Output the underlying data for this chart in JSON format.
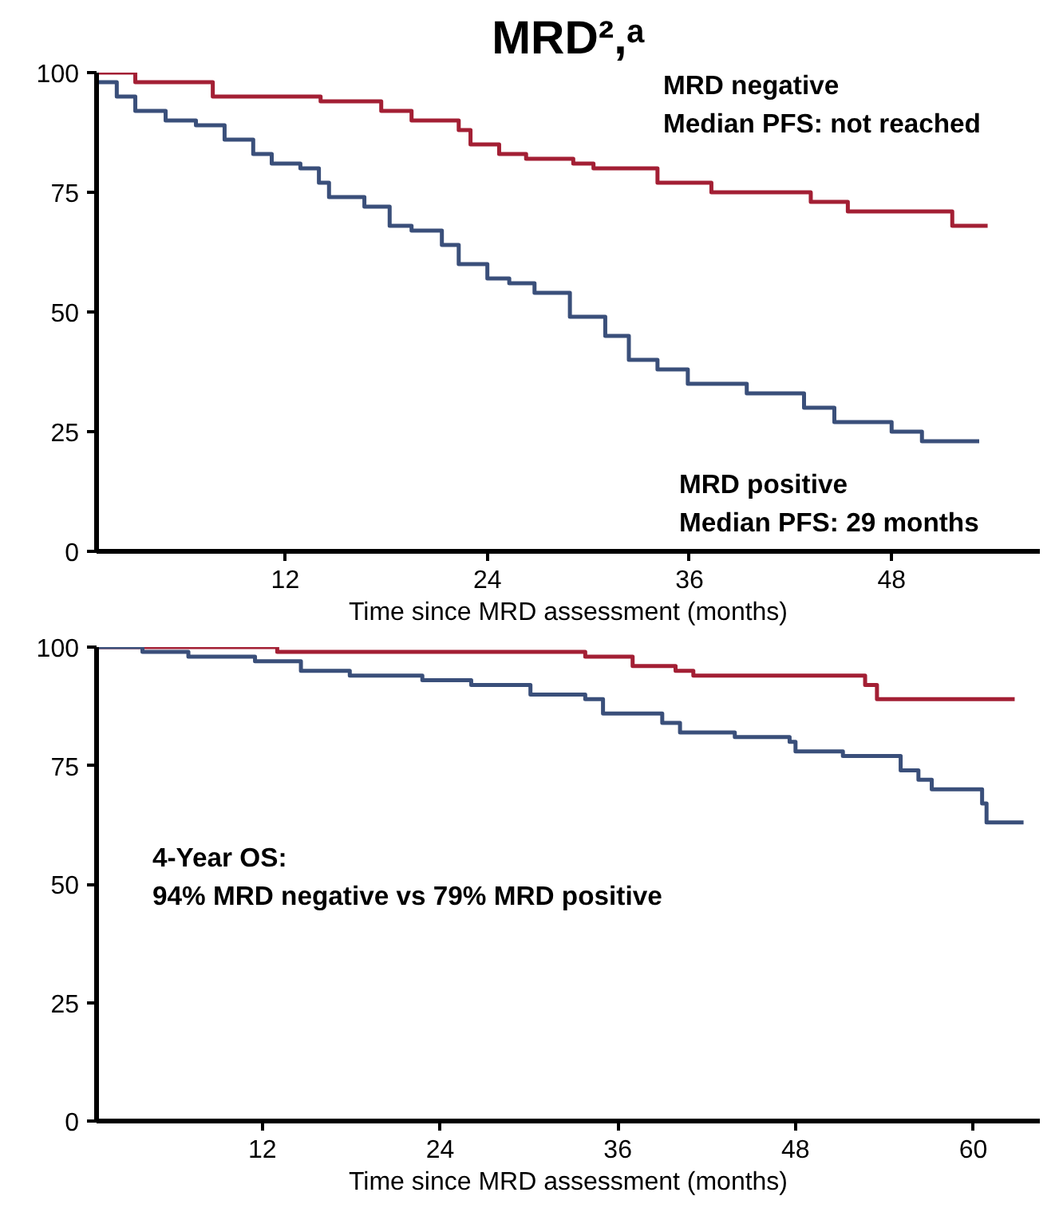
{
  "chart_data": [
    {
      "type": "step",
      "title": "MRD²,ᵃ",
      "xlabel": "Time since MRD assessment (months)",
      "xlim": [
        0.8,
        56.8
      ],
      "xticks": [
        12,
        24,
        36,
        48
      ],
      "ylim": [
        0,
        100
      ],
      "yticks": [
        0,
        25,
        50,
        75,
        100
      ],
      "series": [
        {
          "color": "#a31f34",
          "x": [
            0.8,
            3.1,
            7.7,
            14.1,
            17.7,
            19.5,
            22.3,
            23,
            24.7,
            26.3,
            29.1,
            30.3,
            34.1,
            37.3,
            43.2,
            45.4,
            51.6,
            53.7
          ],
          "values": [
            100,
            98,
            95,
            94,
            92,
            90,
            88,
            85,
            83,
            82,
            81,
            80,
            77,
            75,
            73,
            71,
            68,
            68
          ]
        },
        {
          "color": "#3a4f7a",
          "x": [
            0.8,
            2,
            3.1,
            4.9,
            6.7,
            8.4,
            10.1,
            11.2,
            12.9,
            14,
            14.6,
            16.7,
            18.2,
            19.5,
            21.3,
            22.3,
            24,
            25.3,
            26.8,
            28.9,
            31,
            32.4,
            34.1,
            35.9,
            39.4,
            42.8,
            44.6,
            48,
            49.8,
            53.2
          ],
          "values": [
            98,
            95,
            92,
            90,
            89,
            86,
            83,
            81,
            80,
            77,
            74,
            72,
            68,
            67,
            64,
            60,
            57,
            56,
            54,
            49,
            45,
            40,
            38,
            35,
            33,
            30,
            27,
            25,
            23,
            23
          ]
        }
      ],
      "annotations": [
        "MRD negative",
        "Median PFS: not reached",
        "MRD positive",
        "Median PFS: 29 months"
      ]
    },
    {
      "type": "step",
      "xlabel": "Time since MRD assessment (months)",
      "xlim": [
        0.8,
        64.5
      ],
      "xticks": [
        12,
        24,
        36,
        48,
        60
      ],
      "ylim": [
        0,
        100
      ],
      "yticks": [
        0,
        25,
        50,
        75,
        100
      ],
      "series": [
        {
          "color": "#a31f34",
          "x": [
            0.8,
            13,
            33.8,
            37,
            39.9,
            41.1,
            52.7,
            53.5,
            62.8
          ],
          "values": [
            100,
            99,
            98,
            96,
            95,
            94,
            92,
            89,
            89
          ]
        },
        {
          "color": "#3a4f7a",
          "x": [
            0.8,
            3.9,
            7,
            11.5,
            14.6,
            17.9,
            22.8,
            26.1,
            30.1,
            33.8,
            35,
            39,
            40.2,
            43.9,
            47.6,
            48,
            51.2,
            51.7,
            55.1,
            56.3,
            57.2,
            60.6,
            60.9,
            63.4
          ],
          "values": [
            100,
            99,
            98,
            97,
            95,
            94,
            93,
            92,
            90,
            89,
            86,
            84,
            82,
            81,
            80,
            78,
            77,
            77,
            74,
            72,
            70,
            67,
            63,
            63
          ]
        }
      ],
      "annotations": [
        "4-Year OS:",
        "94% MRD negative vs 79% MRD positive"
      ]
    }
  ]
}
